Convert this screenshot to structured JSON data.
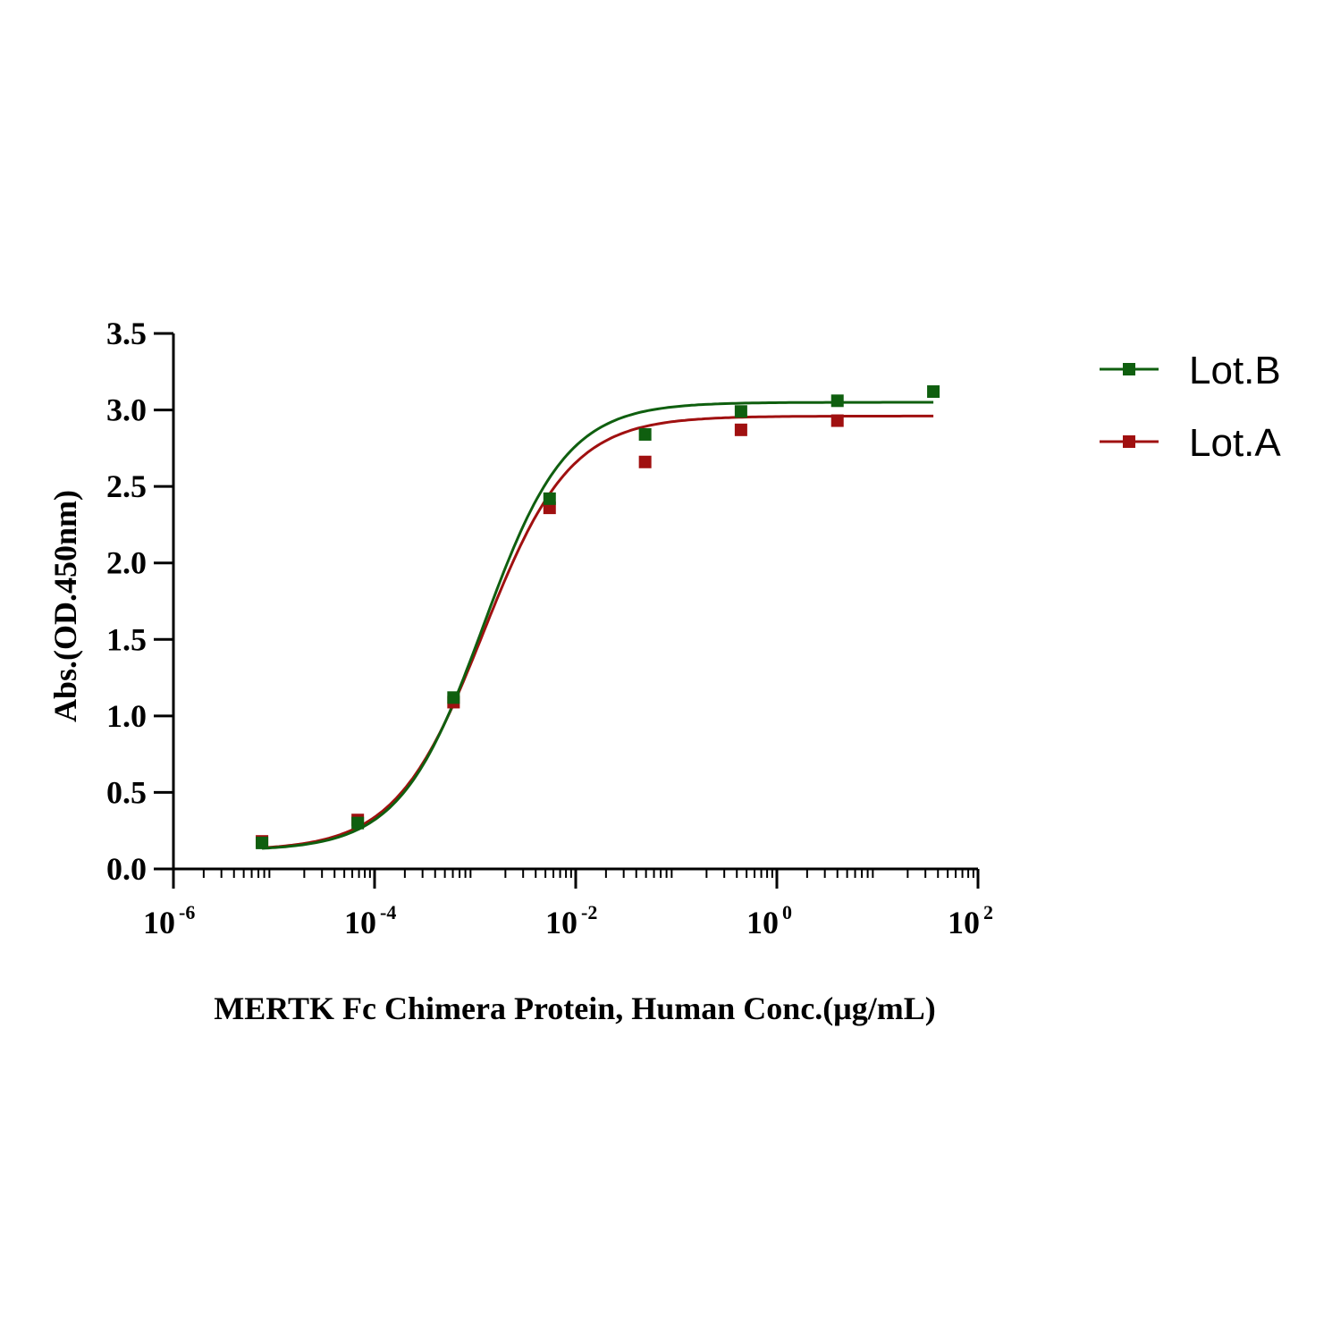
{
  "chart_data": {
    "type": "scatter",
    "x_scale": "log",
    "xlabel": "MERTK Fc Chimera Protein, Human  Conc.(μg/mL)",
    "ylabel": "Abs.(OD.450nm)",
    "xlim": [
      1e-06,
      100
    ],
    "ylim": [
      0,
      3.5
    ],
    "x_ticks": [
      {
        "base": "10",
        "exp": "-6",
        "value": 1e-06
      },
      {
        "base": "10",
        "exp": "-4",
        "value": 0.0001
      },
      {
        "base": "10",
        "exp": "-2",
        "value": 0.01
      },
      {
        "base": "10",
        "exp": "0",
        "value": 1
      },
      {
        "base": "10",
        "exp": "2",
        "value": 100
      }
    ],
    "y_ticks": [
      "0.0",
      "0.5",
      "1.0",
      "1.5",
      "2.0",
      "2.5",
      "3.0",
      "3.5"
    ],
    "legend_position": "top-right",
    "series": [
      {
        "name": "Lot.B",
        "color": "#0f5f0f",
        "x": [
          7.6e-06,
          6.8e-05,
          0.00061,
          0.0055,
          0.049,
          0.44,
          4.0,
          36
        ],
        "y": [
          0.17,
          0.3,
          1.12,
          2.42,
          2.84,
          2.99,
          3.06,
          3.12
        ],
        "fit": {
          "bottom": 0.12,
          "top": 3.05,
          "ec50": 0.0012,
          "hill": 1.05
        }
      },
      {
        "name": "Lot.A",
        "color": "#a01010",
        "x": [
          7.6e-06,
          6.8e-05,
          0.00061,
          0.0055,
          0.049,
          0.44,
          4.0
        ],
        "y": [
          0.18,
          0.32,
          1.09,
          2.36,
          2.66,
          2.87,
          2.93
        ],
        "fit": {
          "bottom": 0.12,
          "top": 2.96,
          "ec50": 0.0012,
          "hill": 1.0
        }
      }
    ]
  }
}
